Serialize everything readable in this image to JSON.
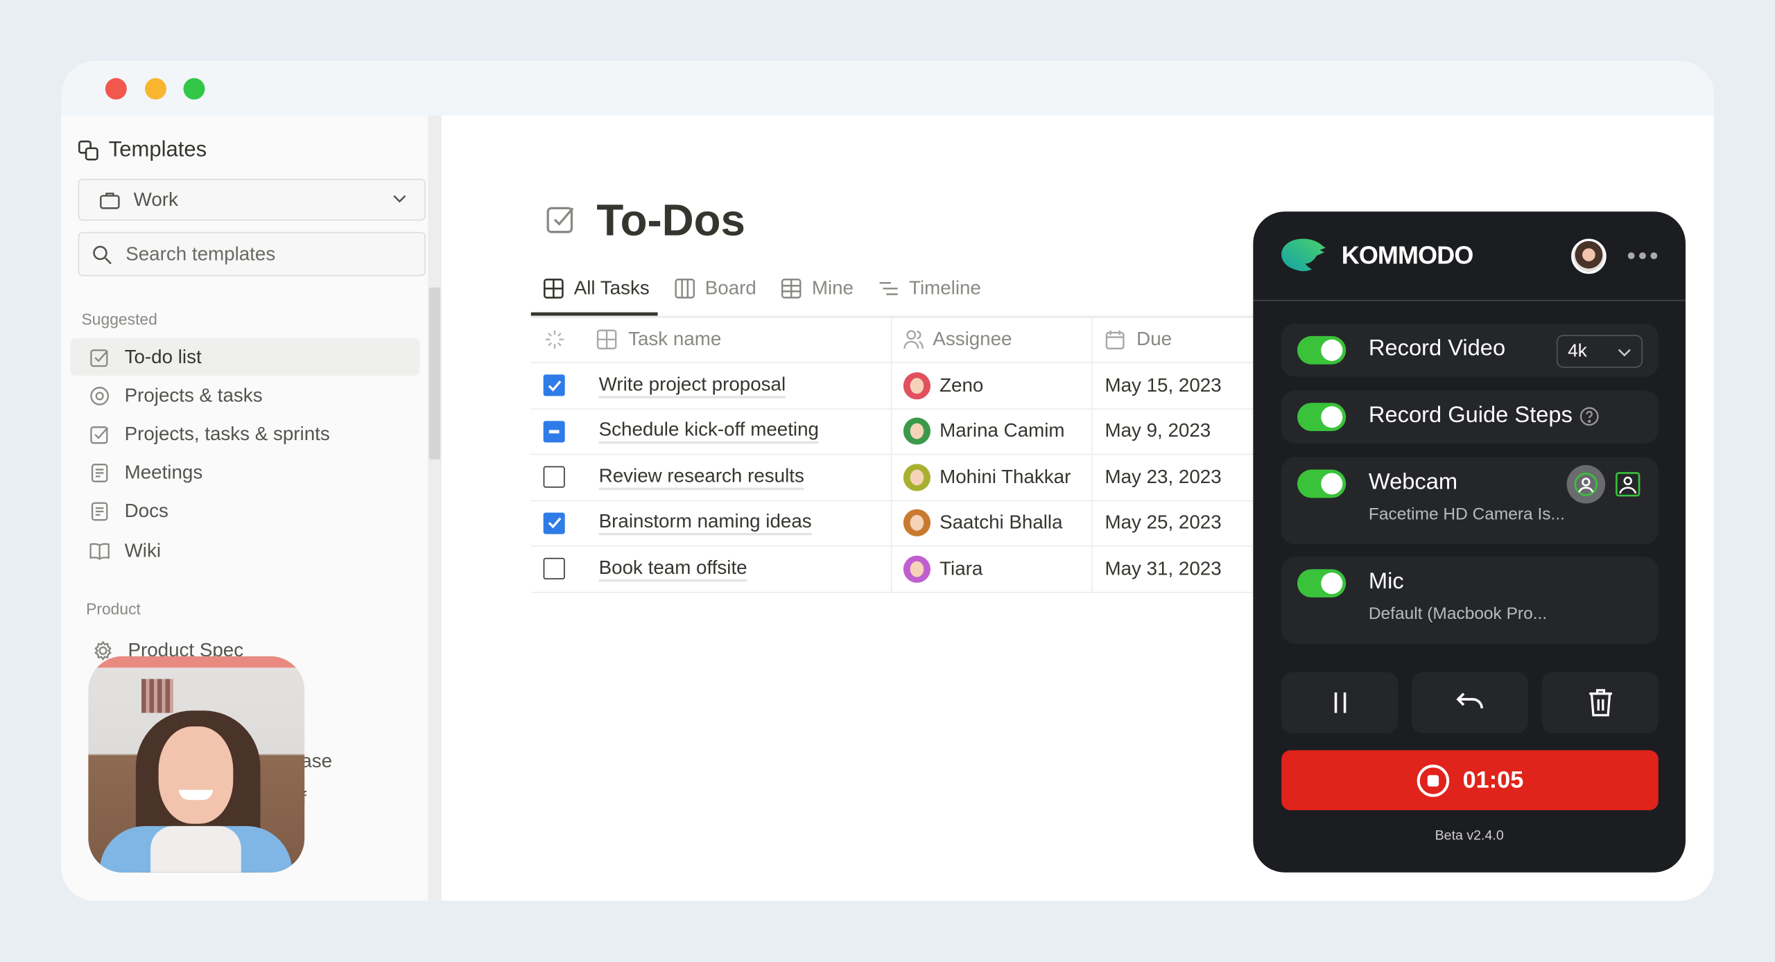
{
  "sidebar": {
    "title": "Templates",
    "workspace": "Work",
    "search_placeholder": "Search templates",
    "suggested_label": "Suggested",
    "suggested": [
      {
        "label": "To-do list",
        "icon": "checkbox-icon",
        "selected": true
      },
      {
        "label": "Projects & tasks",
        "icon": "target-icon"
      },
      {
        "label": "Projects, tasks & sprints",
        "icon": "checkbox-icon"
      },
      {
        "label": "Meetings",
        "icon": "document-icon"
      },
      {
        "label": "Docs",
        "icon": "document-icon"
      },
      {
        "label": "Wiki",
        "icon": "book-icon"
      }
    ],
    "product_label": "Product",
    "product": [
      {
        "label": "Product Spec",
        "icon": "gear-icon"
      },
      {
        "label": "ase"
      },
      {
        "label": "f"
      }
    ]
  },
  "main": {
    "title": "To-Dos",
    "tabs": [
      {
        "label": "All Tasks",
        "icon": "table-icon",
        "active": true
      },
      {
        "label": "Board",
        "icon": "board-icon"
      },
      {
        "label": "Mine",
        "icon": "grid-icon"
      },
      {
        "label": "Timeline",
        "icon": "timeline-icon"
      }
    ],
    "columns": [
      "Task name",
      "Assignee",
      "Due"
    ],
    "rows": [
      {
        "state": "checked",
        "task": "Write project proposal",
        "assignee": "Zeno",
        "avatar_color": "#e0505e",
        "due": "May 15, 2023"
      },
      {
        "state": "indeterminate",
        "task": "Schedule kick-off meeting",
        "assignee": "Marina Camim",
        "avatar_color": "#3a9a4a",
        "due": "May 9, 2023"
      },
      {
        "state": "unchecked",
        "task": "Review research results",
        "assignee": "Mohini Thakkar",
        "avatar_color": "#a8b030",
        "due": "May 23, 2023"
      },
      {
        "state": "checked",
        "task": "Brainstorm naming ideas",
        "assignee": "Saatchi Bhalla",
        "avatar_color": "#c87a30",
        "due": "May 25, 2023"
      },
      {
        "state": "unchecked",
        "task": "Book team offsite",
        "assignee": "Tiara",
        "avatar_color": "#c060d0",
        "due": "May 31, 2023"
      }
    ]
  },
  "recorder": {
    "brand": "KOMMODO",
    "record_video": {
      "label": "Record Video",
      "enabled": true,
      "quality": "4k"
    },
    "record_guide": {
      "label": "Record Guide Steps",
      "enabled": true
    },
    "webcam": {
      "label": "Webcam",
      "enabled": true,
      "device": "Facetime HD Camera Is..."
    },
    "mic": {
      "label": "Mic",
      "enabled": true,
      "device": "Default (Macbook Pro..."
    },
    "timer": "01:05",
    "version": "Beta v2.4.0",
    "accent": "#3ac23b",
    "stop_color": "#e0231b"
  }
}
